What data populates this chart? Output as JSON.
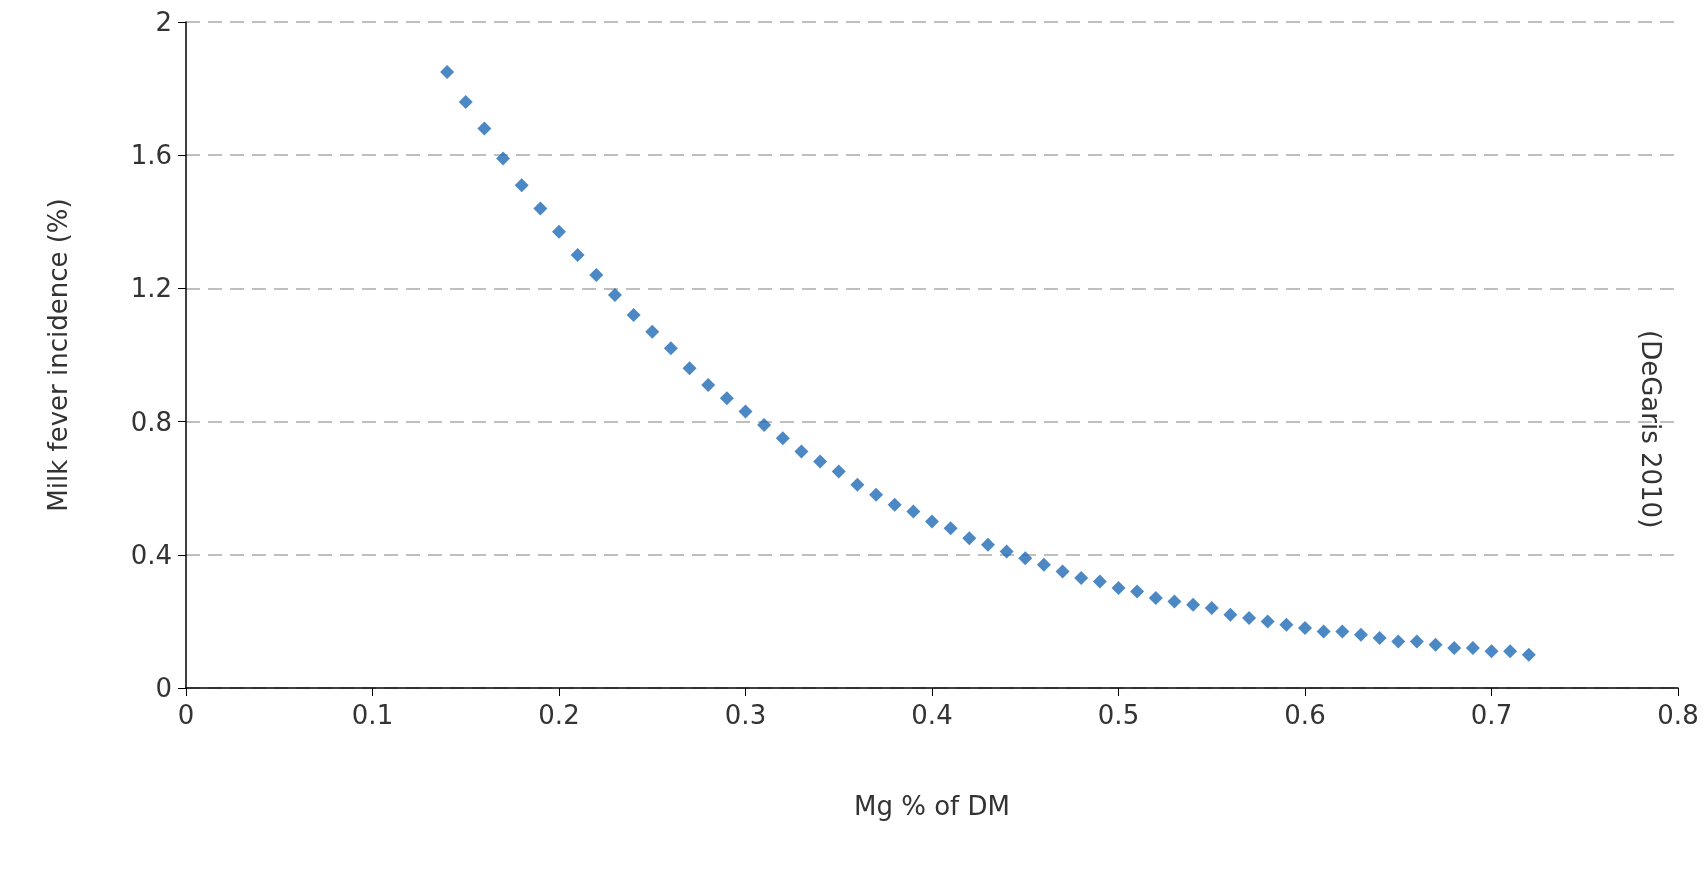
{
  "chart_data": {
    "type": "scatter",
    "xlabel": "Mg % of DM",
    "ylabel": "Milk fever incidence (%)",
    "x": [
      0.14,
      0.15,
      0.16,
      0.17,
      0.18,
      0.19,
      0.2,
      0.21,
      0.22,
      0.23,
      0.24,
      0.25,
      0.26,
      0.27,
      0.28,
      0.29,
      0.3,
      0.31,
      0.32,
      0.33,
      0.34,
      0.35,
      0.36,
      0.37,
      0.38,
      0.39,
      0.4,
      0.41,
      0.42,
      0.43,
      0.44,
      0.45,
      0.46,
      0.47,
      0.48,
      0.49,
      0.5,
      0.51,
      0.52,
      0.53,
      0.54,
      0.55,
      0.56,
      0.57,
      0.58,
      0.59,
      0.6,
      0.61,
      0.62,
      0.63,
      0.64,
      0.65,
      0.66,
      0.67,
      0.68,
      0.69,
      0.7,
      0.71,
      0.72
    ],
    "series": [
      {
        "color": "#1f6bb5",
        "values": [
          1.85,
          1.76,
          1.68,
          1.59,
          1.51,
          1.44,
          1.37,
          1.3,
          1.24,
          1.18,
          1.12,
          1.07,
          1.02,
          0.96,
          0.91,
          0.87,
          0.83,
          0.79,
          0.75,
          0.71,
          0.68,
          0.65,
          0.61,
          0.58,
          0.55,
          0.53,
          0.5,
          0.48,
          0.45,
          0.43,
          0.41,
          0.39,
          0.37,
          0.35,
          0.33,
          0.32,
          0.3,
          0.29,
          0.27,
          0.26,
          0.25,
          0.24,
          0.22,
          0.21,
          0.2,
          0.19,
          0.18,
          0.17,
          0.17,
          0.16,
          0.15,
          0.14,
          0.14,
          0.13,
          0.12,
          0.12,
          0.11,
          0.11,
          0.1
        ]
      }
    ],
    "xlim": [
      0,
      0.8
    ],
    "xticks": [
      0,
      0.1,
      0.2,
      0.3,
      0.4,
      0.5,
      0.6,
      0.7,
      0.8
    ],
    "ylim": [
      0,
      2
    ],
    "yticks": [
      0,
      0.4,
      0.8,
      1.2,
      1.6,
      2
    ],
    "grid": "y",
    "marker": "diamond",
    "annotations": [
      "(DeGaris 2010)"
    ]
  }
}
